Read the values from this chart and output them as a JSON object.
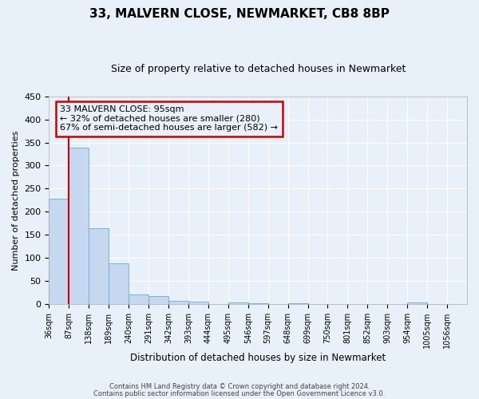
{
  "title": "33, MALVERN CLOSE, NEWMARKET, CB8 8BP",
  "subtitle": "Size of property relative to detached houses in Newmarket",
  "xlabel": "Distribution of detached houses by size in Newmarket",
  "ylabel": "Number of detached properties",
  "bin_labels": [
    "36sqm",
    "87sqm",
    "138sqm",
    "189sqm",
    "240sqm",
    "291sqm",
    "342sqm",
    "393sqm",
    "444sqm",
    "495sqm",
    "546sqm",
    "597sqm",
    "648sqm",
    "699sqm",
    "750sqm",
    "801sqm",
    "852sqm",
    "903sqm",
    "954sqm",
    "1005sqm",
    "1056sqm"
  ],
  "bar_heights": [
    228,
    338,
    165,
    89,
    22,
    18,
    7,
    6,
    0,
    4,
    2,
    0,
    3,
    0,
    0,
    0,
    0,
    0,
    4,
    0,
    0
  ],
  "bar_color": "#c5d8f0",
  "bar_edgecolor": "#6aaad4",
  "vline_x_index": 1,
  "vline_color": "#cc0000",
  "ylim": [
    0,
    450
  ],
  "yticks": [
    0,
    50,
    100,
    150,
    200,
    250,
    300,
    350,
    400,
    450
  ],
  "annotation_title": "33 MALVERN CLOSE: 95sqm",
  "annotation_line1": "← 32% of detached houses are smaller (280)",
  "annotation_line2": "67% of semi-detached houses are larger (582) →",
  "annotation_box_color": "#cc0000",
  "footer_line1": "Contains HM Land Registry data © Crown copyright and database right 2024.",
  "footer_line2": "Contains public sector information licensed under the Open Government Licence v3.0.",
  "background_color": "#e8f0fa",
  "grid_color": "#ffffff"
}
